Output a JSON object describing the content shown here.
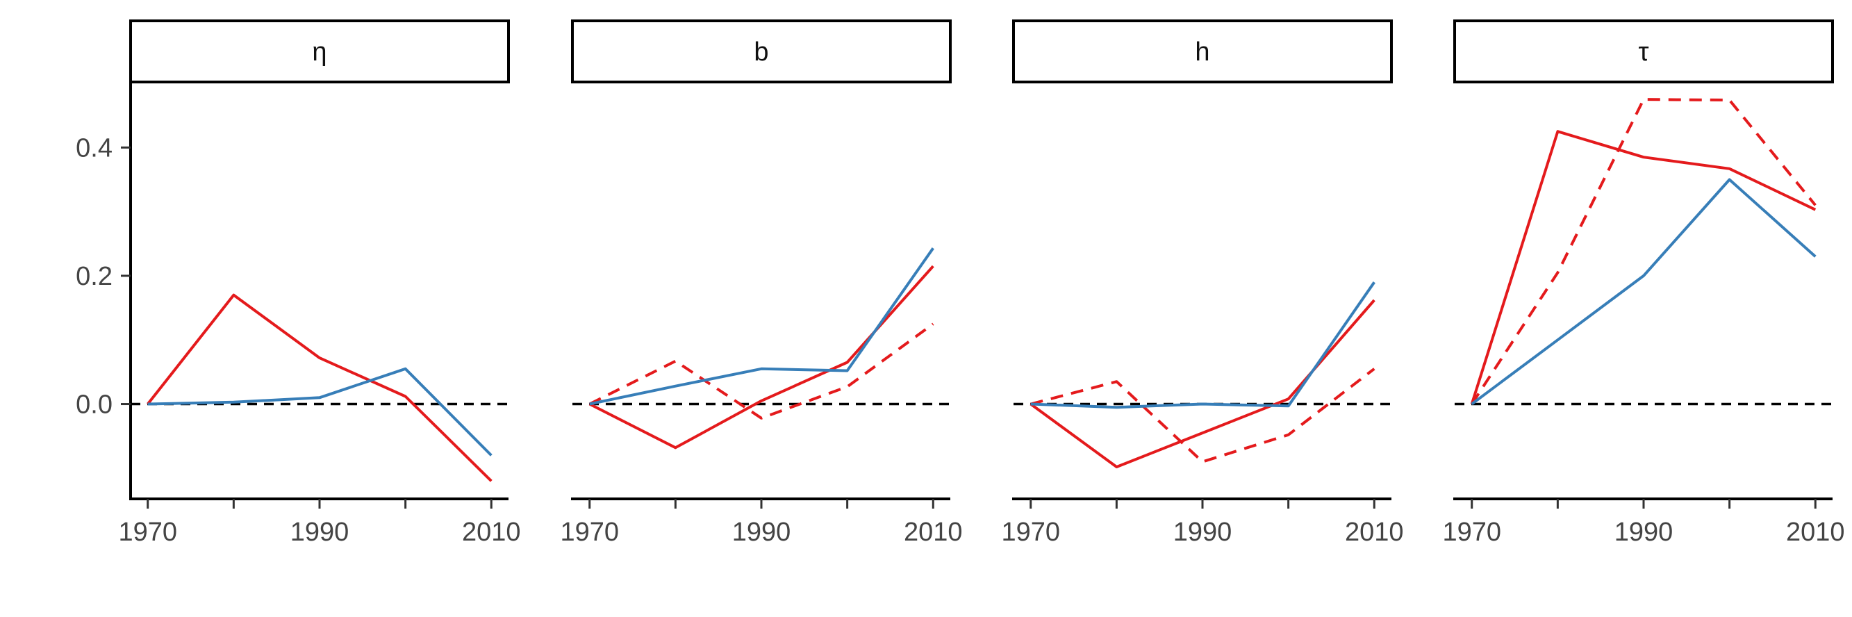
{
  "chart_data": {
    "type": "line",
    "layout": "facets-1x4",
    "x_ticks": [
      1970,
      1990,
      2010
    ],
    "x_minor_ticks": [
      1980,
      2000
    ],
    "xlim": [
      1968,
      2012
    ],
    "ylim": [
      -0.15,
      0.5
    ],
    "y_ticks": [
      0.0,
      0.2,
      0.4
    ],
    "y_tick_labels": [
      "0.0",
      "0.2",
      "0.4"
    ],
    "reference_line": {
      "y": 0,
      "style": "dashed",
      "color": "#000000"
    },
    "colors": {
      "red": "#E41A1C",
      "blue": "#377EB8"
    },
    "panels": [
      {
        "label": "η",
        "series": [
          {
            "color": "#E41A1C",
            "style": "solid",
            "x": [
              1970,
              1980,
              1990,
              2000,
              2010
            ],
            "y": [
              0.0,
              0.17,
              0.072,
              0.012,
              -0.12
            ]
          },
          {
            "color": "#377EB8",
            "style": "solid",
            "x": [
              1970,
              1980,
              1990,
              2000,
              2010
            ],
            "y": [
              0.0,
              0.003,
              0.01,
              0.055,
              -0.08
            ]
          }
        ]
      },
      {
        "label": "b",
        "series": [
          {
            "color": "#E41A1C",
            "style": "solid",
            "x": [
              1970,
              1980,
              1990,
              2000,
              2010
            ],
            "y": [
              0.0,
              -0.068,
              0.005,
              0.065,
              0.215
            ]
          },
          {
            "color": "#E41A1C",
            "style": "dashed",
            "x": [
              1970,
              1980,
              1990,
              2000,
              2010
            ],
            "y": [
              0.0,
              0.067,
              -0.022,
              0.027,
              0.125
            ]
          },
          {
            "color": "#377EB8",
            "style": "solid",
            "x": [
              1970,
              1980,
              1990,
              2000,
              2010
            ],
            "y": [
              0.0,
              0.028,
              0.055,
              0.052,
              0.243
            ]
          }
        ]
      },
      {
        "label": "h",
        "series": [
          {
            "color": "#E41A1C",
            "style": "solid",
            "x": [
              1970,
              1980,
              1990,
              2000,
              2010
            ],
            "y": [
              0.0,
              -0.098,
              -0.045,
              0.008,
              0.162
            ]
          },
          {
            "color": "#E41A1C",
            "style": "dashed",
            "x": [
              1970,
              1980,
              1990,
              2000,
              2010
            ],
            "y": [
              0.0,
              0.035,
              -0.09,
              -0.048,
              0.055
            ]
          },
          {
            "color": "#377EB8",
            "style": "solid",
            "x": [
              1970,
              1980,
              1990,
              2000,
              2010
            ],
            "y": [
              0.0,
              -0.005,
              0.0,
              -0.003,
              0.19
            ]
          }
        ]
      },
      {
        "label": "τ",
        "series": [
          {
            "color": "#E41A1C",
            "style": "solid",
            "x": [
              1970,
              1980,
              1990,
              2000,
              2010
            ],
            "y": [
              0.0,
              0.425,
              0.385,
              0.367,
              0.303
            ]
          },
          {
            "color": "#E41A1C",
            "style": "dashed",
            "x": [
              1970,
              1980,
              1990,
              2000,
              2010
            ],
            "y": [
              0.0,
              0.205,
              0.475,
              0.474,
              0.31
            ]
          },
          {
            "color": "#377EB8",
            "style": "solid",
            "x": [
              1970,
              1980,
              1990,
              2000,
              2010
            ],
            "y": [
              0.0,
              0.1,
              0.2,
              0.35,
              0.23
            ]
          }
        ]
      }
    ]
  }
}
